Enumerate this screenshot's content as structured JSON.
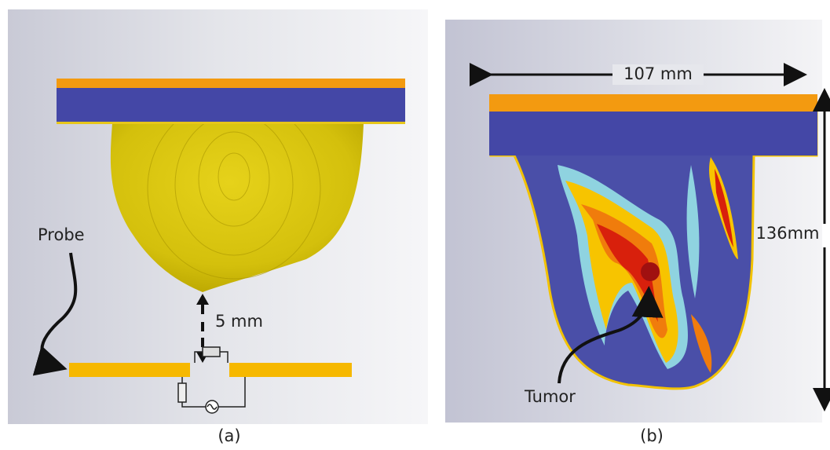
{
  "panel_a": {
    "probe_label": "Probe",
    "distance_label": "5 mm",
    "caption": "(a)"
  },
  "panel_b": {
    "width_label": "107 mm",
    "height_label": "136mm",
    "tumor_label": "Tumor",
    "caption": "(b)"
  }
}
